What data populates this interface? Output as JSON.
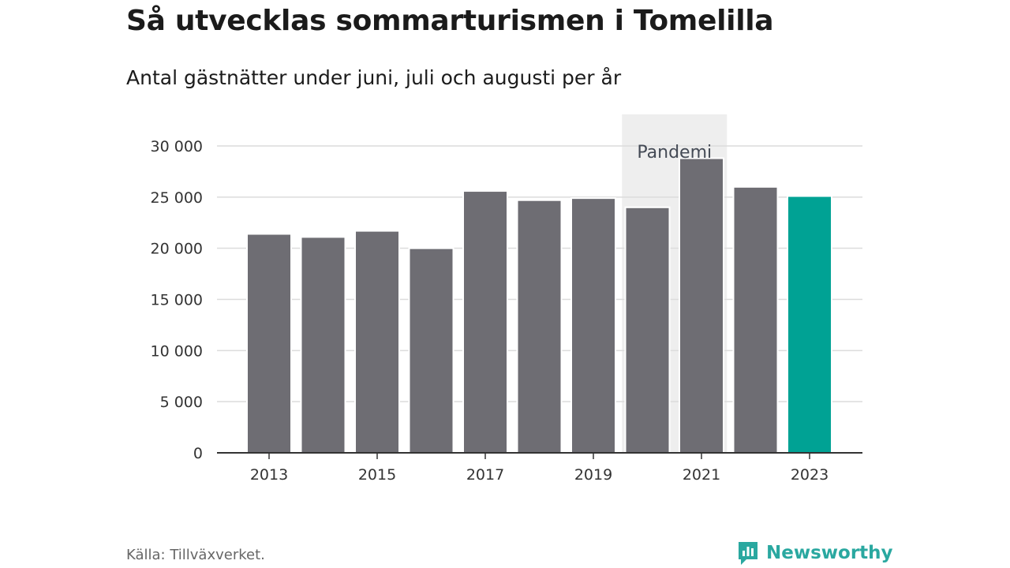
{
  "title": "Så utvecklas sommarturismen i Tomelilla",
  "subtitle": "Antal gästnätter under juni, juli och augusti per år",
  "source": "Källa: Tillväxverket.",
  "brand": {
    "name": "Newsworthy",
    "logo_icon": "newsworthy-logo-icon",
    "color": "#2aa8a0"
  },
  "chart_data": {
    "type": "bar",
    "x": [
      2013,
      2014,
      2015,
      2016,
      2017,
      2018,
      2019,
      2020,
      2021,
      2022,
      2023
    ],
    "values": [
      21400,
      21100,
      21700,
      20000,
      25600,
      24700,
      24900,
      24000,
      28800,
      26000,
      25100
    ],
    "ylim": [
      0,
      30000
    ],
    "yticks": [
      0,
      5000,
      10000,
      15000,
      20000,
      25000,
      30000
    ],
    "ytick_labels": [
      "0",
      "5 000",
      "10 000",
      "15 000",
      "20 000",
      "25 000",
      "30 000"
    ],
    "xticks": [
      2013,
      2015,
      2017,
      2019,
      2021,
      2023
    ],
    "xtick_labels": [
      "2013",
      "2015",
      "2017",
      "2019",
      "2021",
      "2023"
    ],
    "grid": true,
    "bar_color": "#6e6d73",
    "highlight": {
      "x": 2023,
      "color": "#00a294"
    },
    "annotation": {
      "label": "Pandemi",
      "x_from": 2020,
      "x_to": 2021,
      "color": "#eeeeee"
    }
  }
}
